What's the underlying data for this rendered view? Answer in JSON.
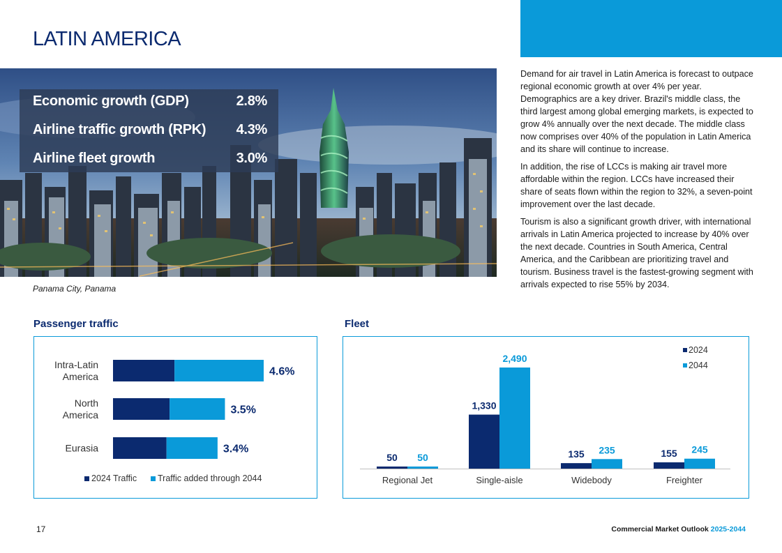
{
  "page": {
    "title": "LATIN AMERICA",
    "page_number": "17",
    "footer_title": "Commercial Market Outlook",
    "footer_years": "2025-2044",
    "colors": {
      "navy": "#0b2a6f",
      "blue": "#0a9ad9"
    }
  },
  "hero": {
    "caption": "Panama City, Panama",
    "stats": [
      {
        "label": "Economic growth (GDP)",
        "value": "2.8%"
      },
      {
        "label": "Airline traffic growth (RPK)",
        "value": "4.3%"
      },
      {
        "label": "Airline fleet growth",
        "value": "3.0%"
      }
    ]
  },
  "body": {
    "paragraphs": [
      "Demand for air travel in Latin America is forecast to outpace regional economic growth at over 4% per year. Demographics are a key driver. Brazil's middle class, the third largest among global emerging markets, is expected to grow 4% annually over the next decade. The middle class now comprises over 40% of the population in Latin America and its share will continue to increase.",
      "In addition, the rise of LCCs is making air travel more affordable within the region. LCCs have increased their share of seats flown within the region to 32%, a seven-point improvement over the last decade.",
      "Tourism is also a significant growth driver, with international arrivals in Latin America projected to increase by 40% over the next decade. Countries in South America, Central America, and the Caribbean are prioritizing travel and tourism. Business travel is the fastest-growing segment with arrivals expected to rise 55% by 2034."
    ]
  },
  "passenger_section": {
    "title": "Passenger traffic"
  },
  "fleet_section": {
    "title": "Fleet"
  },
  "chart_data": [
    {
      "type": "bar",
      "orientation": "horizontal",
      "stacked": true,
      "title": "Passenger traffic",
      "categories": [
        [
          "Intra-Latin",
          "America"
        ],
        [
          "North",
          "America"
        ],
        [
          "Eurasia"
        ]
      ],
      "series": [
        {
          "name": "2024 Traffic",
          "color": "#0b2a6f",
          "values": [
            1.0,
            0.92,
            0.87
          ]
        },
        {
          "name": "Traffic added through 2044",
          "color": "#0a9ad9",
          "values": [
            1.45,
            0.9,
            0.83
          ]
        }
      ],
      "labels": [
        "4.6%",
        "3.5%",
        "3.4%"
      ],
      "xlim": [
        0,
        2.45
      ]
    },
    {
      "type": "bar",
      "title": "Fleet",
      "categories": [
        "Regional Jet",
        "Single-aisle",
        "Widebody",
        "Freighter"
      ],
      "series": [
        {
          "name": "2024",
          "color": "#0b2a6f",
          "values": [
            50,
            1330,
            135,
            155
          ],
          "labels": [
            "50",
            "1,330",
            "135",
            "155"
          ]
        },
        {
          "name": "2044",
          "color": "#0a9ad9",
          "values": [
            50,
            2490,
            235,
            245
          ],
          "labels": [
            "50",
            "2,490",
            "235",
            "245"
          ]
        }
      ],
      "ylim": [
        0,
        2490
      ]
    }
  ]
}
